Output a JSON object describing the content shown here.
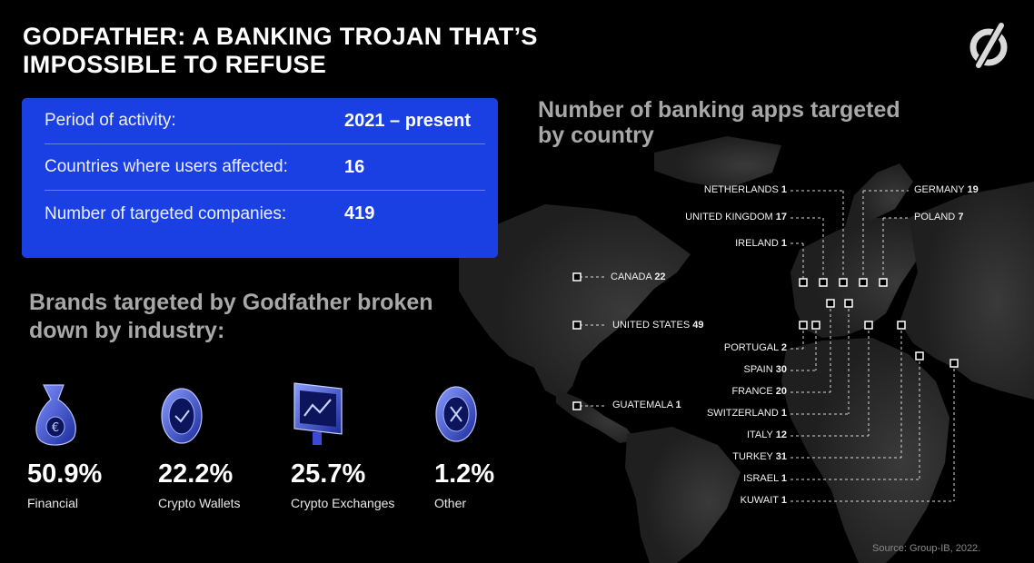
{
  "header": {
    "title": "GODFATHER: A BANKING TROJAN THAT’S IMPOSSIBLE TO REFUSE"
  },
  "info": [
    {
      "label": "Period of activity:",
      "value": "2021 – present"
    },
    {
      "label": "Countries where users affected:",
      "value": "16"
    },
    {
      "label": "Number of targeted companies:",
      "value": "419"
    }
  ],
  "brands_title": "Brands targeted by Godfather broken down by industry:",
  "industries": [
    {
      "percent": "50.9%",
      "label": "Financial",
      "icon": "money-bag-icon"
    },
    {
      "percent": "22.2%",
      "label": "Crypto Wallets",
      "icon": "crypto-coin-icon"
    },
    {
      "percent": "25.7%",
      "label": "Crypto Exchanges",
      "icon": "exchange-monitor-icon"
    },
    {
      "percent": "1.2%",
      "label": "Other",
      "icon": "other-coin-icon"
    }
  ],
  "map_title": "Number of banking apps targeted by country",
  "countries": [
    {
      "name": "NETHERLANDS",
      "count": "1"
    },
    {
      "name": "GERMANY",
      "count": "19"
    },
    {
      "name": "UNITED KINGDOM",
      "count": "17"
    },
    {
      "name": "POLAND",
      "count": "7"
    },
    {
      "name": "IRELAND",
      "count": "1"
    },
    {
      "name": "CANADA",
      "count": "22"
    },
    {
      "name": "UNITED STATES",
      "count": "49"
    },
    {
      "name": "GUATEMALA",
      "count": "1"
    },
    {
      "name": "PORTUGAL",
      "count": "2"
    },
    {
      "name": "SPAIN",
      "count": "30"
    },
    {
      "name": "FRANCE",
      "count": "20"
    },
    {
      "name": "SWITZERLAND",
      "count": "1"
    },
    {
      "name": "ITALY",
      "count": "12"
    },
    {
      "name": "TURKEY",
      "count": "31"
    },
    {
      "name": "ISRAEL",
      "count": "1"
    },
    {
      "name": "KUWAIT",
      "count": "1"
    }
  ],
  "source": "Source: Group-IB, 2022.",
  "colors": {
    "accent": "#1a3fe2",
    "muted_heading": "#a8a8a8",
    "map_land": "#2a2a2a"
  }
}
